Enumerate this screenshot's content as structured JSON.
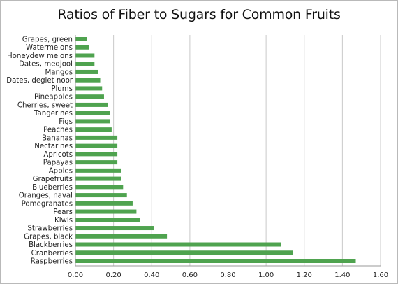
{
  "chart_data": {
    "type": "bar",
    "orientation": "horizontal",
    "title": "Ratios of Fiber to Sugars for Common Fruits",
    "xlabel": "",
    "ylabel": "",
    "xlim": [
      0,
      1.6
    ],
    "xticks": [
      "0.00",
      "0.20",
      "0.40",
      "0.60",
      "0.80",
      "1.00",
      "1.20",
      "1.40",
      "1.60"
    ],
    "grid": true,
    "bar_color": "#4fa34f",
    "categories": [
      "Grapes, green",
      "Watermelons",
      "Honeydew melons",
      "Dates, medjool",
      "Mangos",
      "Dates, deglet noor",
      "Plums",
      "Pineapples",
      "Cherries, sweet",
      "Tangerines",
      "Figs",
      "Peaches",
      "Bananas",
      "Nectarines",
      "Apricots",
      "Papayas",
      "Apples",
      "Grapefruits",
      "Blueberries",
      "Oranges, naval",
      "Pomegranates",
      "Pears",
      "Kiwis",
      "Strawberries",
      "Grapes, black",
      "Blackberries",
      "Cranberries",
      "Raspberries"
    ],
    "values": [
      0.06,
      0.07,
      0.1,
      0.1,
      0.12,
      0.13,
      0.14,
      0.15,
      0.17,
      0.18,
      0.18,
      0.19,
      0.22,
      0.22,
      0.22,
      0.22,
      0.24,
      0.24,
      0.25,
      0.27,
      0.3,
      0.32,
      0.34,
      0.41,
      0.48,
      1.08,
      1.14,
      1.47
    ]
  }
}
